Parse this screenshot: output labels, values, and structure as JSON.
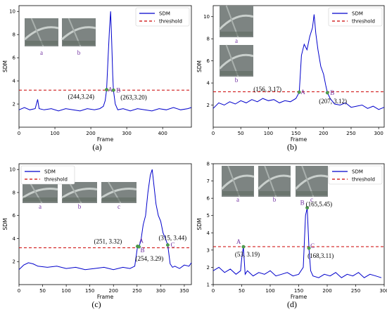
{
  "colors": {
    "series": "#0000cc",
    "threshold": "#cc0000",
    "marker": "#50a050",
    "letter": "#7030a0"
  },
  "chart_data": [
    {
      "type": "line",
      "caption": "(a)",
      "xlabel": "Frame",
      "ylabel": "SDM",
      "xlim": [
        0,
        480
      ],
      "ylim": [
        0,
        10.5
      ],
      "xticks": [
        0,
        100,
        200,
        300,
        400
      ],
      "yticks": [
        2,
        4,
        6,
        8,
        10
      ],
      "legend": {
        "position": "top-right",
        "entries": [
          "SDM",
          "threshold"
        ]
      },
      "threshold": 3.2,
      "thumbnails": [
        "a",
        "b"
      ],
      "series": [
        {
          "name": "SDM",
          "x": [
            0,
            15,
            30,
            45,
            52,
            56,
            70,
            90,
            110,
            130,
            150,
            170,
            190,
            210,
            225,
            235,
            240,
            244,
            248,
            252,
            255,
            258,
            261,
            263,
            268,
            275,
            290,
            310,
            330,
            350,
            370,
            390,
            410,
            430,
            450,
            470,
            480
          ],
          "y": [
            1.5,
            1.7,
            1.5,
            1.6,
            2.4,
            1.6,
            1.5,
            1.6,
            1.4,
            1.6,
            1.5,
            1.4,
            1.6,
            1.5,
            1.6,
            1.8,
            2.3,
            3.24,
            6.0,
            8.5,
            10.0,
            7.5,
            4.5,
            3.2,
            2.0,
            1.5,
            1.6,
            1.4,
            1.6,
            1.5,
            1.4,
            1.6,
            1.5,
            1.7,
            1.5,
            1.6,
            1.7
          ]
        }
      ],
      "points": [
        {
          "x": 244,
          "y": 3.24,
          "label": "(244,3.24)"
        },
        {
          "x": 263,
          "y": 3.2,
          "label": "(263,3.20)"
        }
      ],
      "point_letters": [
        "A",
        "B"
      ]
    },
    {
      "type": "line",
      "caption": "(b)",
      "xlabel": "Frame",
      "ylabel": "SDM",
      "xlim": [
        0,
        310
      ],
      "ylim": [
        0,
        11
      ],
      "xticks": [
        0,
        50,
        100,
        150,
        200,
        250,
        300
      ],
      "yticks": [
        2,
        4,
        6,
        8,
        10
      ],
      "legend": {
        "position": "top-right",
        "entries": [
          "SDM",
          "threshold"
        ]
      },
      "threshold": 3.2,
      "thumbnails": [
        "a",
        "b"
      ],
      "series": [
        {
          "name": "SDM",
          "x": [
            0,
            10,
            20,
            30,
            40,
            50,
            60,
            70,
            80,
            90,
            100,
            110,
            120,
            130,
            140,
            150,
            156,
            160,
            165,
            170,
            175,
            180,
            183,
            186,
            190,
            195,
            200,
            204,
            207,
            212,
            220,
            230,
            240,
            250,
            260,
            270,
            280,
            290,
            300,
            310
          ],
          "y": [
            1.7,
            2.2,
            2.0,
            2.3,
            2.1,
            2.4,
            2.2,
            2.5,
            2.3,
            2.6,
            2.4,
            2.5,
            2.2,
            2.4,
            2.3,
            2.6,
            3.17,
            6.5,
            7.5,
            7.0,
            8.2,
            9.0,
            10.2,
            8.5,
            7.0,
            5.5,
            4.8,
            3.8,
            3.12,
            2.6,
            2.1,
            2.0,
            2.2,
            1.8,
            1.9,
            2.0,
            1.7,
            1.9,
            1.6,
            1.8
          ]
        }
      ],
      "points": [
        {
          "x": 156,
          "y": 3.17,
          "label": "(156, 3.17)"
        },
        {
          "x": 207,
          "y": 3.12,
          "label": "(207, 3.12)"
        }
      ],
      "point_letters": [
        "A",
        "B"
      ]
    },
    {
      "type": "line",
      "caption": "(c)",
      "xlabel": "Frame",
      "ylabel": "SDM",
      "xlim": [
        0,
        365
      ],
      "ylim": [
        0,
        10.5
      ],
      "xticks": [
        0,
        50,
        100,
        150,
        200,
        250,
        300,
        350
      ],
      "yticks": [
        2,
        4,
        6,
        8,
        10
      ],
      "legend": {
        "position": "top-left",
        "entries": [
          "SDM",
          "threshold"
        ]
      },
      "threshold": 3.2,
      "thumbnails": [
        "a",
        "b",
        "c"
      ],
      "series": [
        {
          "name": "SDM",
          "x": [
            0,
            10,
            20,
            30,
            40,
            60,
            80,
            100,
            120,
            140,
            160,
            180,
            200,
            220,
            235,
            245,
            251,
            254,
            258,
            263,
            268,
            273,
            278,
            282,
            286,
            290,
            295,
            300,
            305,
            310,
            315,
            320,
            325,
            330,
            340,
            350,
            360,
            365
          ],
          "y": [
            1.3,
            1.7,
            1.9,
            1.8,
            1.6,
            1.5,
            1.6,
            1.4,
            1.5,
            1.3,
            1.4,
            1.5,
            1.3,
            1.5,
            1.4,
            1.6,
            3.32,
            3.29,
            3.8,
            5.2,
            6.0,
            8.0,
            9.5,
            10.0,
            8.5,
            7.0,
            6.0,
            5.5,
            4.5,
            4.0,
            3.44,
            1.8,
            1.5,
            1.6,
            1.4,
            1.7,
            1.6,
            1.9
          ]
        }
      ],
      "points": [
        {
          "x": 251,
          "y": 3.32,
          "label": "(251, 3.32)"
        },
        {
          "x": 254,
          "y": 3.29,
          "label": "(254, 3.29)"
        },
        {
          "x": 315,
          "y": 3.44,
          "label": "(315, 3.44)"
        }
      ],
      "point_letters": [
        "A",
        "B",
        "C"
      ]
    },
    {
      "type": "line",
      "caption": "(d)",
      "xlabel": "Frame",
      "ylabel": "SDM",
      "xlim": [
        0,
        300
      ],
      "ylim": [
        1,
        8
      ],
      "xticks": [
        0,
        50,
        100,
        150,
        200,
        250,
        300
      ],
      "yticks": [
        1,
        2,
        3,
        4,
        5,
        6,
        7,
        8
      ],
      "legend": {
        "position": "top-right",
        "entries": [
          "SDM",
          "threshold"
        ]
      },
      "threshold": 3.2,
      "thumbnails": [
        "a",
        "b",
        "c"
      ],
      "series": [
        {
          "name": "SDM",
          "x": [
            0,
            10,
            20,
            30,
            40,
            48,
            50,
            53,
            56,
            60,
            70,
            80,
            90,
            100,
            110,
            120,
            130,
            140,
            150,
            158,
            162,
            165,
            168,
            171,
            175,
            185,
            195,
            205,
            215,
            225,
            235,
            245,
            255,
            265,
            275,
            285,
            295
          ],
          "y": [
            1.8,
            2.0,
            1.7,
            1.9,
            1.6,
            1.8,
            2.5,
            3.19,
            1.6,
            1.8,
            1.5,
            1.7,
            1.6,
            1.8,
            1.5,
            1.6,
            1.7,
            1.5,
            1.6,
            2.0,
            5.0,
            5.45,
            3.11,
            1.8,
            1.5,
            1.4,
            1.6,
            1.5,
            1.7,
            1.4,
            1.6,
            1.5,
            1.7,
            1.4,
            1.6,
            1.5,
            1.4
          ]
        }
      ],
      "points": [
        {
          "x": 53,
          "y": 3.19,
          "label": "(53, 3.19)"
        },
        {
          "x": 165,
          "y": 5.45,
          "label": "(165,5.45)"
        },
        {
          "x": 168,
          "y": 3.11,
          "label": "(168,3.11)"
        }
      ],
      "point_letters": [
        "A",
        "B",
        "C"
      ]
    }
  ]
}
